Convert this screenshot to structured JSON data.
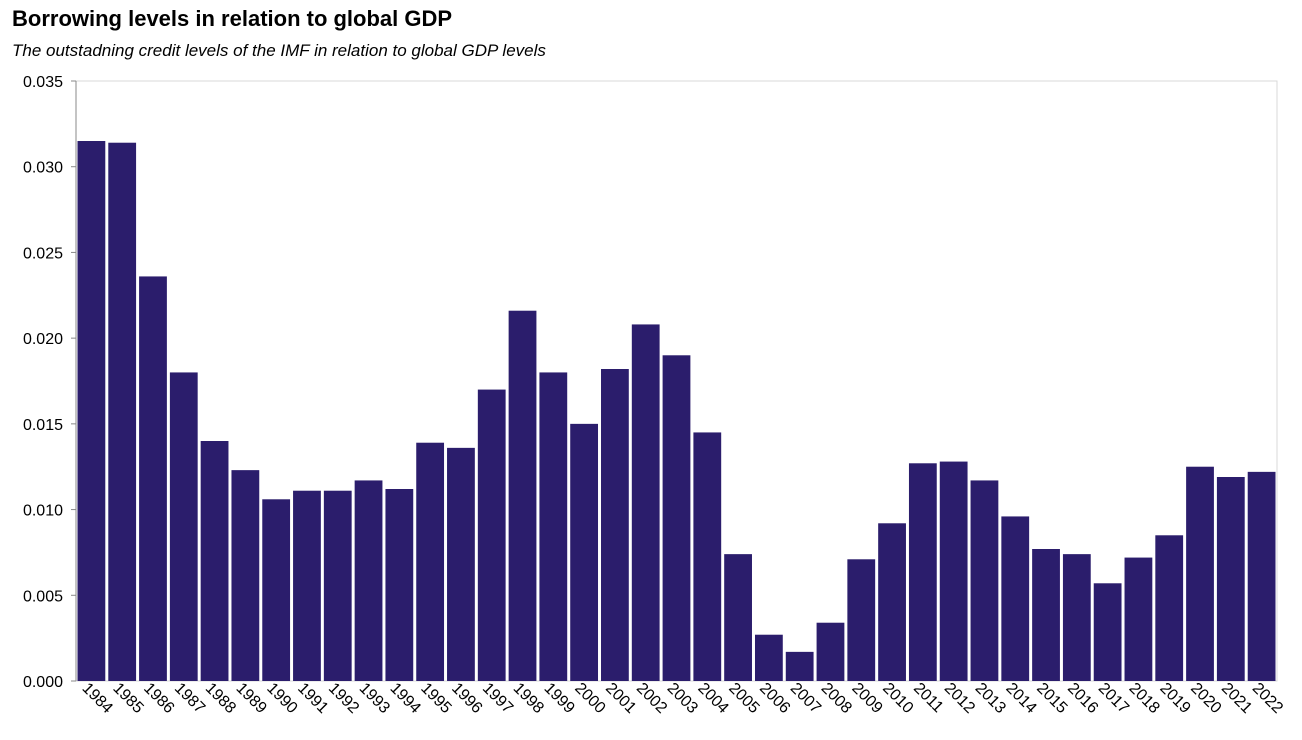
{
  "title": "Borrowing levels in relation to global GDP",
  "subtitle": "The outstadning credit levels of the IMF in relation to global GDP levels",
  "colors": {
    "bar": "#2b1d6c",
    "frame": "#d9d9d9",
    "axis": "#888888"
  },
  "chart_data": {
    "type": "bar",
    "title": "Borrowing levels in relation to global GDP",
    "subtitle": "The outstadning credit levels of the IMF in relation to global GDP levels",
    "xlabel": "",
    "ylabel": "",
    "ylim": [
      0,
      0.035
    ],
    "yticks": [
      "0.000",
      "0.005",
      "0.010",
      "0.015",
      "0.020",
      "0.025",
      "0.030",
      "0.035"
    ],
    "grid": false,
    "categories": [
      "1984",
      "1985",
      "1986",
      "1987",
      "1988",
      "1989",
      "1990",
      "1991",
      "1992",
      "1993",
      "1994",
      "1995",
      "1996",
      "1997",
      "1998",
      "1999",
      "2000",
      "2001",
      "2002",
      "2003",
      "2004",
      "2005",
      "2006",
      "2007",
      "2008",
      "2009",
      "2010",
      "2011",
      "2012",
      "2013",
      "2014",
      "2015",
      "2016",
      "2017",
      "2018",
      "2019",
      "2020",
      "2021",
      "2022"
    ],
    "values": [
      0.0315,
      0.0314,
      0.0236,
      0.018,
      0.014,
      0.0123,
      0.0106,
      0.0111,
      0.0111,
      0.0117,
      0.0112,
      0.0139,
      0.0136,
      0.017,
      0.0216,
      0.018,
      0.015,
      0.0182,
      0.0208,
      0.019,
      0.0145,
      0.0074,
      0.0027,
      0.0017,
      0.0034,
      0.0071,
      0.0092,
      0.0127,
      0.0128,
      0.0117,
      0.0096,
      0.0077,
      0.0074,
      0.0057,
      0.0072,
      0.0085,
      0.0125,
      0.0119,
      0.0122
    ]
  }
}
